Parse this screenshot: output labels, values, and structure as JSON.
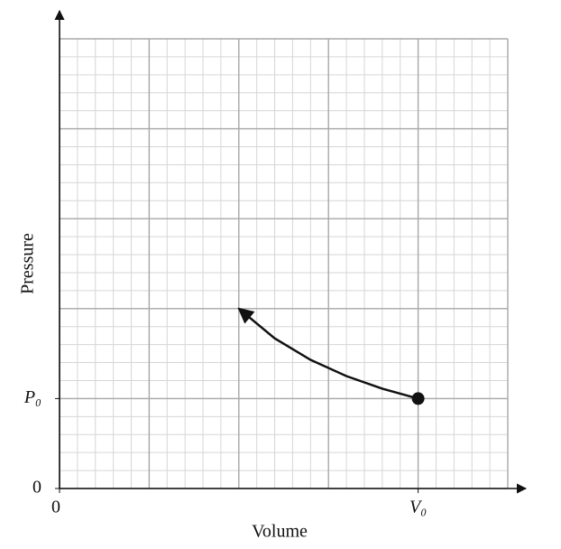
{
  "chart_data": {
    "type": "line",
    "x_label": "Volume",
    "y_label": "Pressure",
    "xlim": [
      0,
      5
    ],
    "ylim": [
      0,
      5
    ],
    "xticks": [
      0,
      {
        "value": 4,
        "label": "V₀"
      }
    ],
    "yticks": [
      0,
      {
        "value": 1,
        "label": "P₀"
      }
    ],
    "grid": true,
    "grid_step": 1,
    "minor_grid_step": 0.2,
    "series": [
      {
        "x": [
          4,
          3.6,
          3.2,
          2.8,
          2.4,
          2
        ],
        "values": [
          1,
          1.11,
          1.25,
          1.43,
          1.67,
          2
        ],
        "color": "#111111"
      }
    ]
  }
}
